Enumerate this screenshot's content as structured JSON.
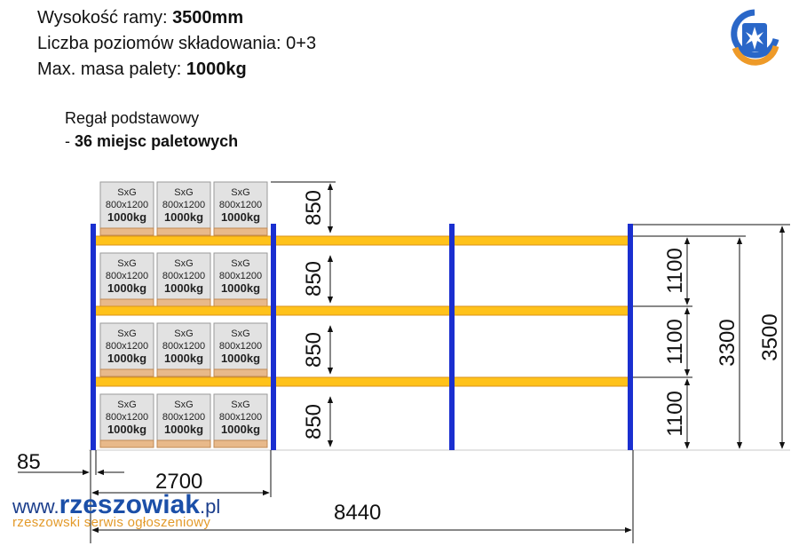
{
  "specs": {
    "height_label": "Wysokość ramy: ",
    "height_value": "3500mm",
    "levels_label": "Liczba poziomów składowania: ",
    "levels_value": "0+3",
    "mass_label": "Max. masa palety: ",
    "mass_value": "1000kg"
  },
  "description": {
    "line1": "Regał podstawowy",
    "line2_prefix": "- ",
    "line2_bold": "36 miejsc paletowych"
  },
  "pallet_box": {
    "type": "SxG",
    "size": "800x1200",
    "weight": "1000kg"
  },
  "dimensions": {
    "level_height": "850",
    "beam_spacing": "1100",
    "clear_height": "3300",
    "total_height": "3500",
    "upright_width": "85",
    "bay_width": "2700",
    "total_width": "8440"
  },
  "watermark": {
    "prefix": "www.",
    "brand": "rzeszowiak",
    "suffix": ".pl",
    "tagline": "rzeszowski serwis ogłoszeniowy"
  },
  "colors": {
    "upright": "#1a2fd0",
    "beam": "#ffc21a",
    "beam_edge": "#d9921a",
    "box": "#e2e2e2",
    "pallet": "#e8b98a"
  }
}
